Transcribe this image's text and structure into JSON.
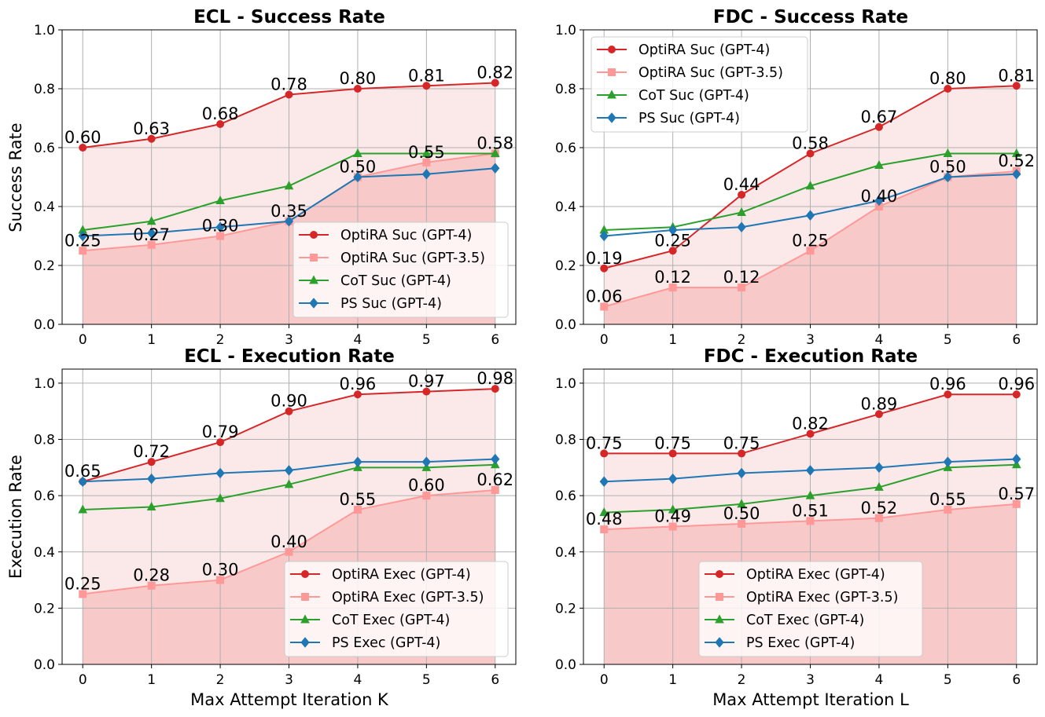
{
  "chart_data": [
    {
      "type": "line",
      "title": "ECL - Success Rate",
      "xlabel": "",
      "ylabel": "Success Rate",
      "x": [
        0,
        1,
        2,
        3,
        4,
        5,
        6
      ],
      "xlim": [
        -0.3,
        6.3
      ],
      "ylim": [
        0,
        1.0
      ],
      "xticks": [
        "0",
        "1",
        "2",
        "3",
        "4",
        "5",
        "6"
      ],
      "yticks": [
        "0.0",
        "0.2",
        "0.4",
        "0.6",
        "0.8",
        "1.0"
      ],
      "grid": true,
      "legend_position": "lower-right",
      "series": [
        {
          "name": "OptiRA Suc (GPT-4)",
          "color": "#d62728",
          "marker": "circle",
          "values": [
            0.6,
            0.63,
            0.68,
            0.78,
            0.8,
            0.81,
            0.82
          ],
          "labels": [
            "0.60",
            "0.63",
            "0.68",
            "0.78",
            "0.80",
            "0.81",
            "0.82"
          ]
        },
        {
          "name": "OptiRA Suc (GPT-3.5)",
          "color": "#ff9896",
          "marker": "square",
          "values": [
            0.25,
            0.27,
            0.3,
            0.35,
            0.5,
            0.55,
            0.58
          ],
          "labels": [
            "0.25",
            "0.27",
            "0.30",
            "0.35",
            "0.50",
            "0.55",
            "0.58"
          ]
        },
        {
          "name": "CoT Suc (GPT-4)",
          "color": "#2ca02c",
          "marker": "triangle",
          "values": [
            0.32,
            0.35,
            0.42,
            0.47,
            0.58,
            0.58,
            0.58
          ]
        },
        {
          "name": "PS Suc (GPT-4)",
          "color": "#1f77b4",
          "marker": "diamond",
          "values": [
            0.3,
            0.31,
            0.33,
            0.35,
            0.5,
            0.51,
            0.53
          ]
        }
      ]
    },
    {
      "type": "line",
      "title": "FDC - Success Rate",
      "xlabel": "",
      "ylabel": "",
      "x": [
        0,
        1,
        2,
        3,
        4,
        5,
        6
      ],
      "xlim": [
        -0.3,
        6.3
      ],
      "ylim": [
        0,
        1.0
      ],
      "xticks": [
        "0",
        "1",
        "2",
        "3",
        "4",
        "5",
        "6"
      ],
      "yticks": [
        "0.0",
        "0.2",
        "0.4",
        "0.6",
        "0.8",
        "1.0"
      ],
      "grid": true,
      "legend_position": "upper-left",
      "series": [
        {
          "name": "OptiRA Suc (GPT-4)",
          "color": "#d62728",
          "marker": "circle",
          "values": [
            0.19,
            0.25,
            0.44,
            0.58,
            0.67,
            0.8,
            0.81
          ],
          "labels": [
            "0.19",
            "0.25",
            "0.44",
            "0.58",
            "0.67",
            "0.80",
            "0.81"
          ]
        },
        {
          "name": "OptiRA Suc (GPT-3.5)",
          "color": "#ff9896",
          "marker": "square",
          "values": [
            0.06,
            0.125,
            0.125,
            0.25,
            0.4,
            0.5,
            0.52
          ],
          "labels": [
            "0.06",
            "0.12",
            "0.12",
            "0.25",
            "0.40",
            "0.50",
            "0.52"
          ]
        },
        {
          "name": "CoT Suc (GPT-4)",
          "color": "#2ca02c",
          "marker": "triangle",
          "values": [
            0.32,
            0.33,
            0.38,
            0.47,
            0.54,
            0.58,
            0.58
          ]
        },
        {
          "name": "PS Suc (GPT-4)",
          "color": "#1f77b4",
          "marker": "diamond",
          "values": [
            0.3,
            0.32,
            0.33,
            0.37,
            0.42,
            0.5,
            0.51
          ]
        }
      ]
    },
    {
      "type": "line",
      "title": "ECL - Execution Rate",
      "xlabel": "Max Attempt Iteration K",
      "ylabel": "Execution Rate",
      "x": [
        0,
        1,
        2,
        3,
        4,
        5,
        6
      ],
      "xlim": [
        -0.3,
        6.3
      ],
      "ylim": [
        0,
        1.05
      ],
      "xticks": [
        "0",
        "1",
        "2",
        "3",
        "4",
        "5",
        "6"
      ],
      "yticks": [
        "0.0",
        "0.2",
        "0.4",
        "0.6",
        "0.8",
        "1.0"
      ],
      "grid": true,
      "legend_position": "lower-right",
      "series": [
        {
          "name": "OptiRA Exec (GPT-4)",
          "color": "#d62728",
          "marker": "circle",
          "values": [
            0.65,
            0.72,
            0.79,
            0.9,
            0.96,
            0.97,
            0.98
          ],
          "labels": [
            "0.65",
            "0.72",
            "0.79",
            "0.90",
            "0.96",
            "0.97",
            "0.98"
          ]
        },
        {
          "name": "OptiRA Exec (GPT-3.5)",
          "color": "#ff9896",
          "marker": "square",
          "values": [
            0.25,
            0.28,
            0.3,
            0.4,
            0.55,
            0.6,
            0.62
          ],
          "labels": [
            "0.25",
            "0.28",
            "0.30",
            "0.40",
            "0.55",
            "0.60",
            "0.62"
          ]
        },
        {
          "name": "CoT Exec (GPT-4)",
          "color": "#2ca02c",
          "marker": "triangle",
          "values": [
            0.55,
            0.56,
            0.59,
            0.64,
            0.7,
            0.7,
            0.71
          ]
        },
        {
          "name": "PS Exec (GPT-4)",
          "color": "#1f77b4",
          "marker": "diamond",
          "values": [
            0.65,
            0.66,
            0.68,
            0.69,
            0.72,
            0.72,
            0.73
          ]
        }
      ]
    },
    {
      "type": "line",
      "title": "FDC - Execution Rate",
      "xlabel": "Max Attempt Iteration L",
      "ylabel": "",
      "x": [
        0,
        1,
        2,
        3,
        4,
        5,
        6
      ],
      "xlim": [
        -0.3,
        6.3
      ],
      "ylim": [
        0,
        1.05
      ],
      "xticks": [
        "0",
        "1",
        "2",
        "3",
        "4",
        "5",
        "6"
      ],
      "yticks": [
        "0.0",
        "0.2",
        "0.4",
        "0.6",
        "0.8",
        "1.0"
      ],
      "grid": true,
      "legend_position": "lower-center",
      "series": [
        {
          "name": "OptiRA Exec (GPT-4)",
          "color": "#d62728",
          "marker": "circle",
          "values": [
            0.75,
            0.75,
            0.75,
            0.82,
            0.89,
            0.96,
            0.96
          ],
          "labels": [
            "0.75",
            "0.75",
            "0.75",
            "0.82",
            "0.89",
            "0.96",
            "0.96"
          ]
        },
        {
          "name": "OptiRA Exec (GPT-3.5)",
          "color": "#ff9896",
          "marker": "square",
          "values": [
            0.48,
            0.49,
            0.5,
            0.51,
            0.52,
            0.55,
            0.57
          ],
          "labels": [
            "0.48",
            "0.49",
            "0.50",
            "0.51",
            "0.52",
            "0.55",
            "0.57"
          ]
        },
        {
          "name": "CoT Exec (GPT-4)",
          "color": "#2ca02c",
          "marker": "triangle",
          "values": [
            0.54,
            0.55,
            0.57,
            0.6,
            0.63,
            0.7,
            0.71
          ]
        },
        {
          "name": "PS Exec (GPT-4)",
          "color": "#1f77b4",
          "marker": "diamond",
          "values": [
            0.65,
            0.66,
            0.68,
            0.69,
            0.7,
            0.72,
            0.73
          ]
        }
      ]
    }
  ]
}
